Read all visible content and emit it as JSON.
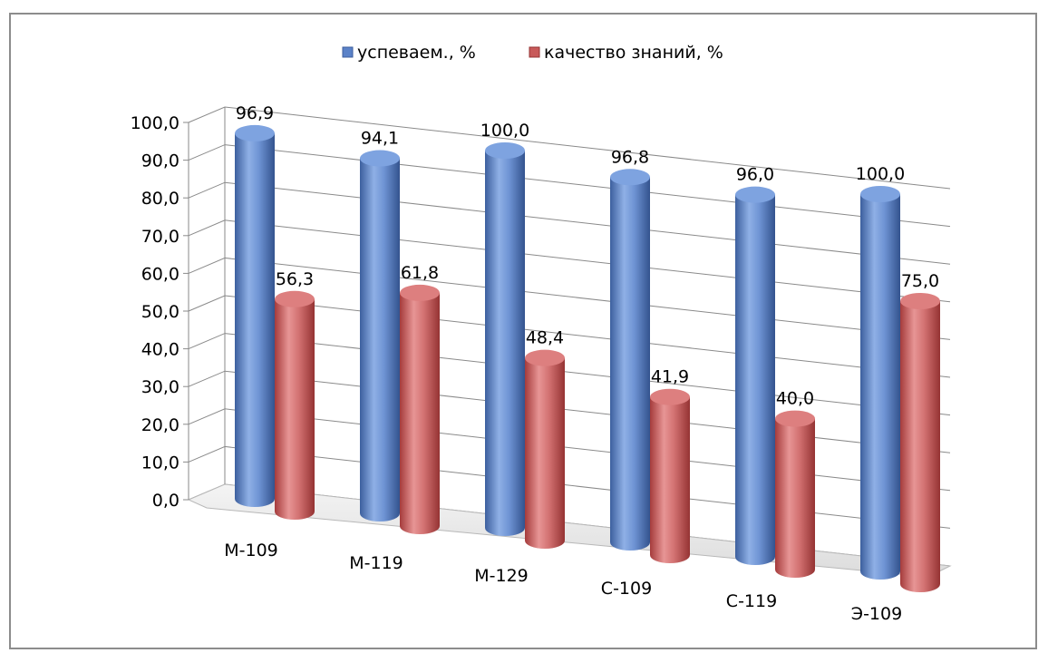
{
  "chart_data": {
    "type": "bar",
    "style": "3d-cylinder",
    "categories": [
      "М-109",
      "М-119",
      "М-129",
      "С-109",
      "С-119",
      "Э-109"
    ],
    "series": [
      {
        "name": "успеваем., %",
        "values": [
          96.9,
          94.1,
          100.0,
          96.8,
          96.0,
          100.0
        ],
        "color": "#5b82c8"
      },
      {
        "name": "качество знаний, %",
        "values": [
          56.3,
          61.8,
          48.4,
          41.9,
          40.0,
          75.0
        ],
        "color": "#c85a5a"
      }
    ],
    "data_labels": [
      [
        "96,9",
        "94,1",
        "100,0",
        "96,8",
        "96,0",
        "100,0"
      ],
      [
        "56,3",
        "61,8",
        "48,4",
        "41,9",
        "40,0",
        "75,0"
      ]
    ],
    "y_ticks": [
      "0,0",
      "10,0",
      "20,0",
      "30,0",
      "40,0",
      "50,0",
      "60,0",
      "70,0",
      "80,0",
      "90,0",
      "100,0"
    ],
    "ylim": [
      0,
      100
    ],
    "grid": true,
    "legend_position": "top-center"
  }
}
